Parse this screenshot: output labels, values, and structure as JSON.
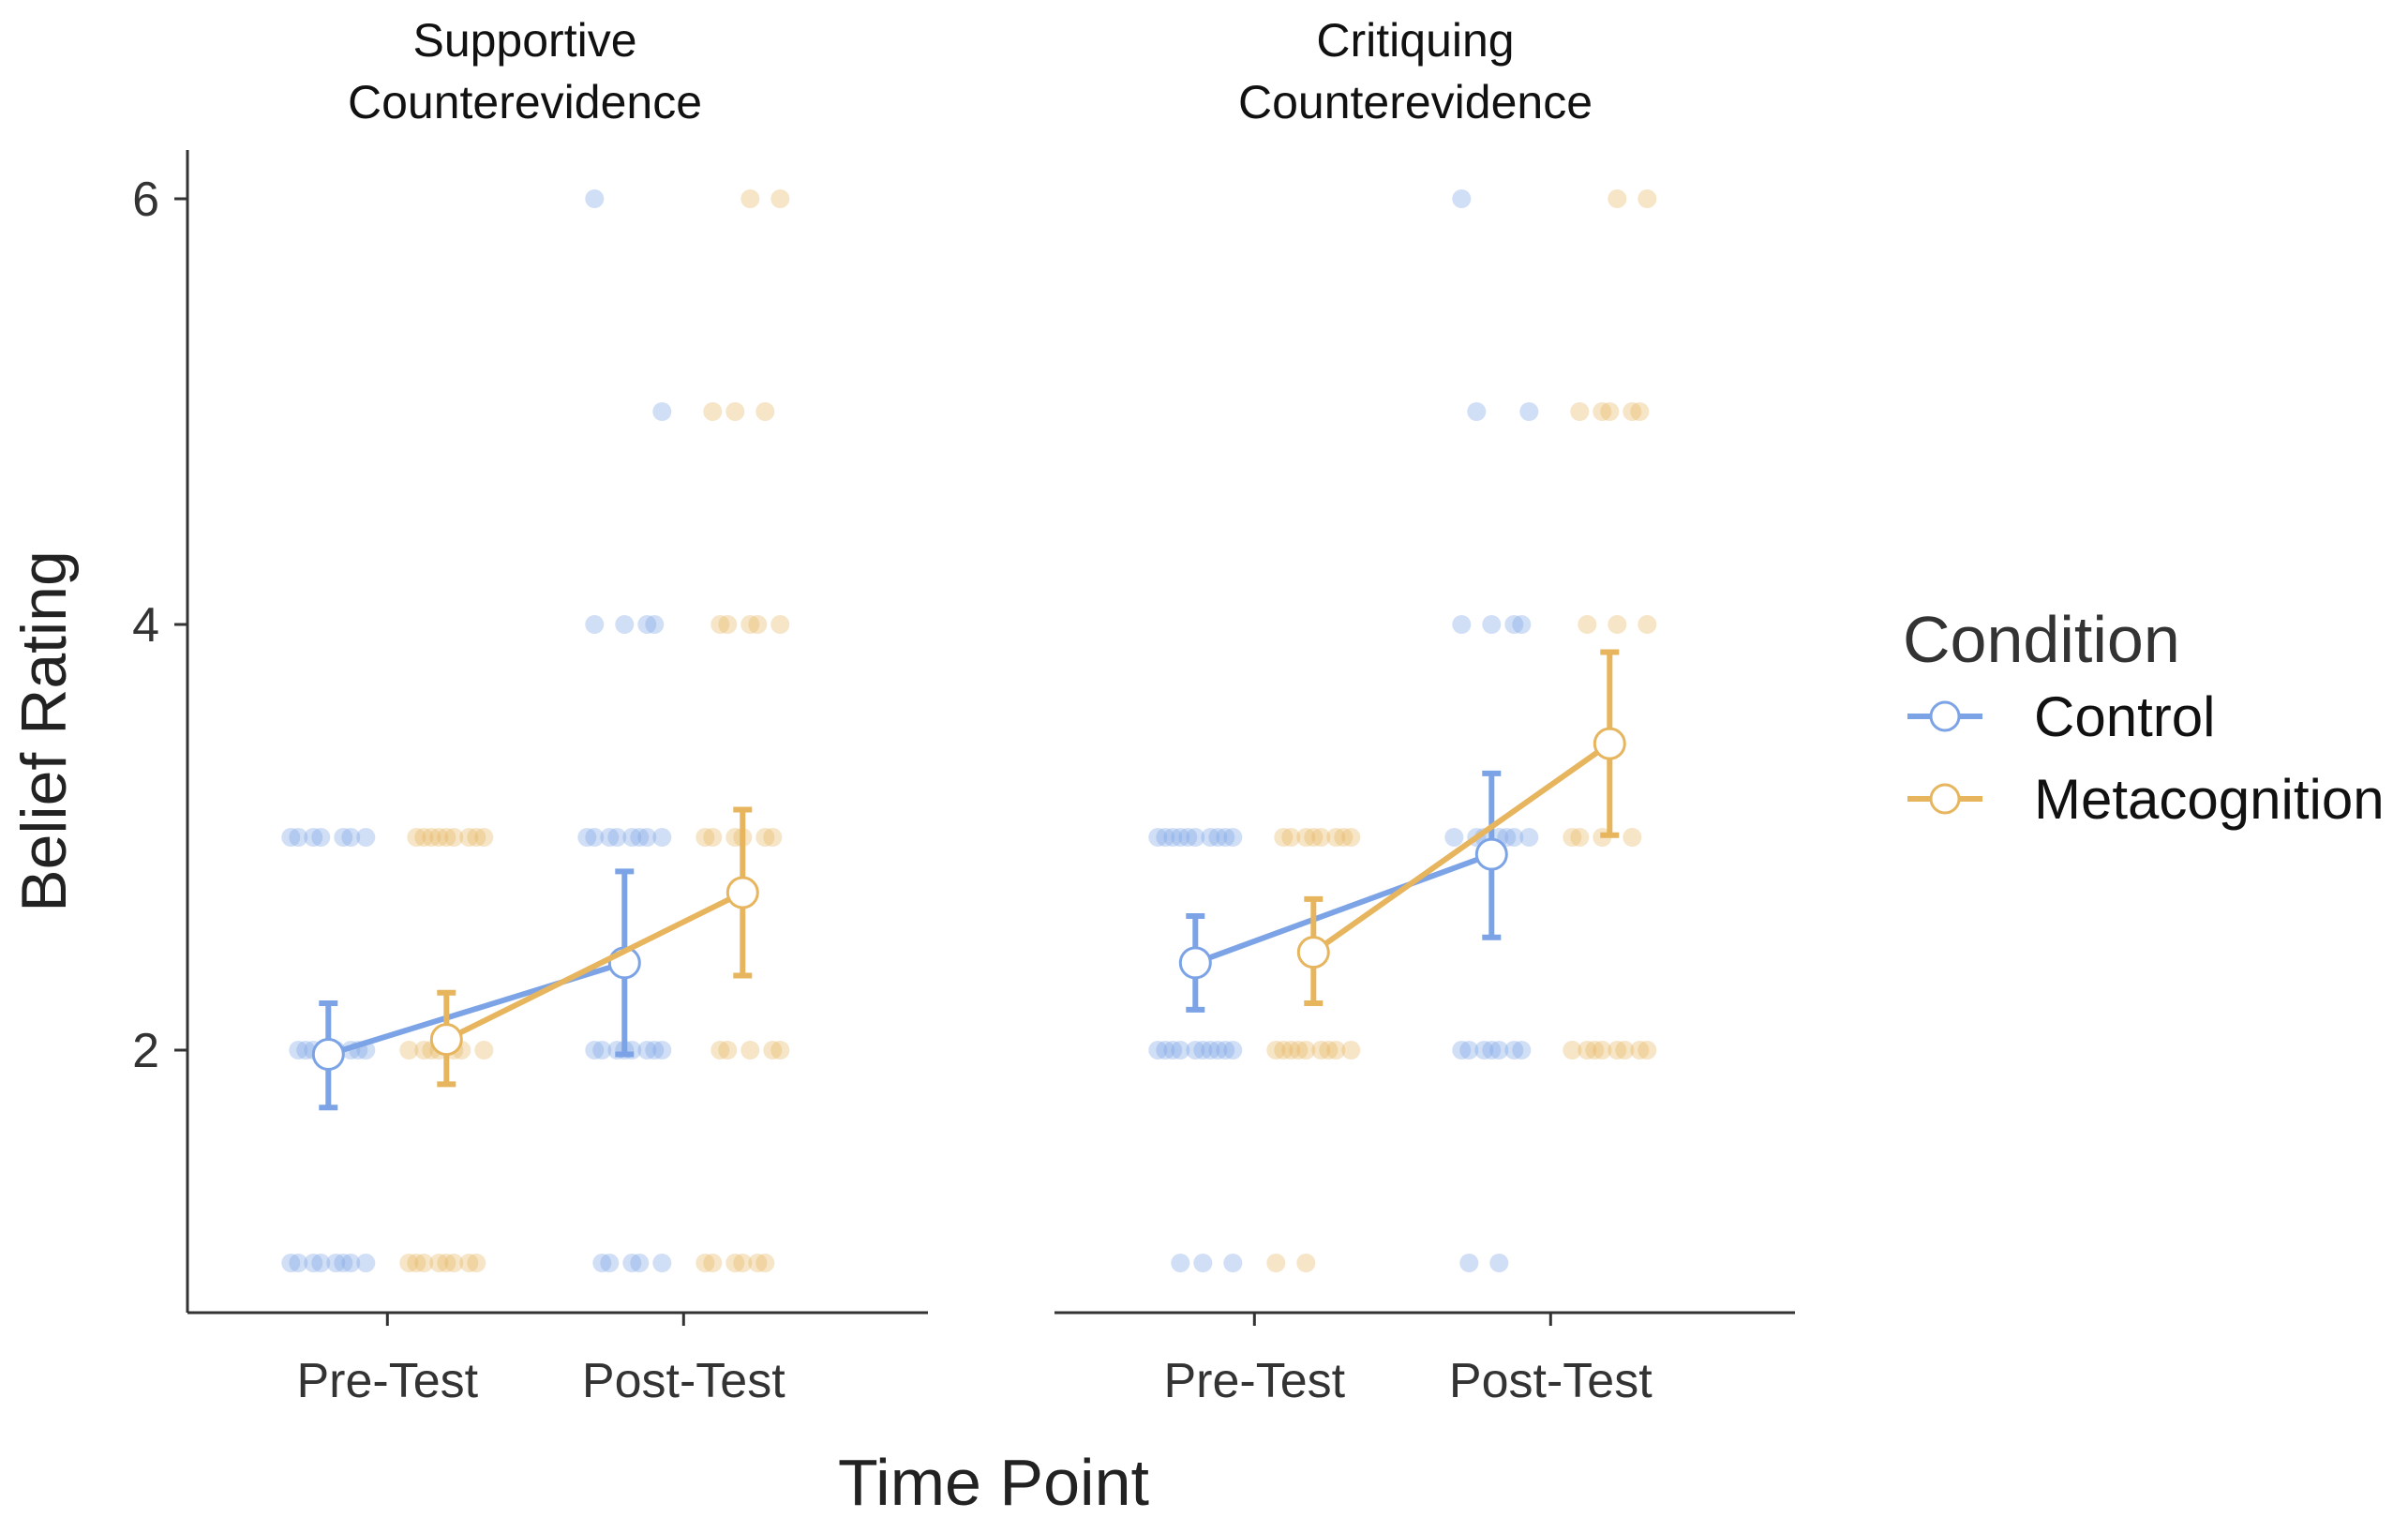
{
  "chart_data": {
    "type": "line",
    "ylabel": "Belief Rating",
    "xlabel": "Time Point",
    "ylim": [
      0.75,
      6.25
    ],
    "yticks": [
      2,
      4,
      6
    ],
    "categories": [
      "Pre-Test",
      "Post-Test"
    ],
    "legend": {
      "title": "Condition",
      "placement": "right",
      "entries": [
        {
          "name": "Control",
          "color": "#7ba3e6"
        },
        {
          "name": "Metacognition",
          "color": "#e6b55e"
        }
      ]
    },
    "facets": [
      {
        "title_line1": "Supportive",
        "title_line2": "Counterevidence",
        "series": [
          {
            "name": "Control",
            "means": [
              1.98,
              2.41
            ],
            "ci_low": [
              1.73,
              1.98
            ],
            "ci_high": [
              2.22,
              2.84
            ],
            "raw": [
              [
                3,
                3,
                3,
                3,
                3,
                3,
                3,
                2,
                2,
                2,
                2,
                2,
                2,
                2,
                2,
                1,
                1,
                1,
                1,
                1,
                1,
                1,
                1
              ],
              [
                6,
                5,
                4,
                4,
                4,
                4,
                3,
                3,
                3,
                3,
                3,
                3,
                3,
                3,
                2,
                2,
                2,
                2,
                2,
                2,
                2,
                2,
                1,
                1,
                1,
                1,
                1
              ]
            ]
          },
          {
            "name": "Metacognition",
            "means": [
              2.05,
              2.74
            ],
            "ci_low": [
              1.84,
              2.35
            ],
            "ci_high": [
              2.27,
              3.13
            ],
            "raw": [
              [
                3,
                3,
                3,
                3,
                3,
                3,
                3,
                3,
                3,
                2,
                2,
                2,
                2,
                2,
                2,
                2,
                1,
                1,
                1,
                1,
                1,
                1,
                1,
                1
              ],
              [
                6,
                6,
                5,
                5,
                5,
                4,
                4,
                4,
                4,
                4,
                3,
                3,
                3,
                3,
                3,
                3,
                2,
                2,
                2,
                2,
                2,
                1,
                1,
                1,
                1,
                1,
                1
              ]
            ]
          }
        ]
      },
      {
        "title_line1": "Critiquing",
        "title_line2": "Counterevidence",
        "series": [
          {
            "name": "Control",
            "means": [
              2.41,
              2.92
            ],
            "ci_low": [
              2.19,
              2.53
            ],
            "ci_high": [
              2.63,
              3.3
            ],
            "raw": [
              [
                3,
                3,
                3,
                3,
                3,
                3,
                3,
                3,
                3,
                3,
                2,
                2,
                2,
                2,
                2,
                2,
                2,
                2,
                2,
                2,
                1,
                1,
                1
              ],
              [
                6,
                5,
                5,
                4,
                4,
                4,
                4,
                3,
                3,
                3,
                3,
                3,
                3,
                3,
                2,
                2,
                2,
                2,
                2,
                2,
                2,
                1,
                1
              ]
            ]
          },
          {
            "name": "Metacognition",
            "means": [
              2.46,
              3.44
            ],
            "ci_low": [
              2.22,
              3.01
            ],
            "ci_high": [
              2.71,
              3.87
            ],
            "raw": [
              [
                3,
                3,
                3,
                3,
                3,
                3,
                3,
                3,
                2,
                2,
                2,
                2,
                2,
                2,
                2,
                2,
                2,
                1,
                1
              ],
              [
                6,
                6,
                5,
                5,
                5,
                5,
                5,
                4,
                4,
                4,
                3,
                3,
                3,
                3,
                2,
                2,
                2,
                2,
                2,
                2,
                2,
                2
              ]
            ]
          }
        ]
      }
    ]
  }
}
